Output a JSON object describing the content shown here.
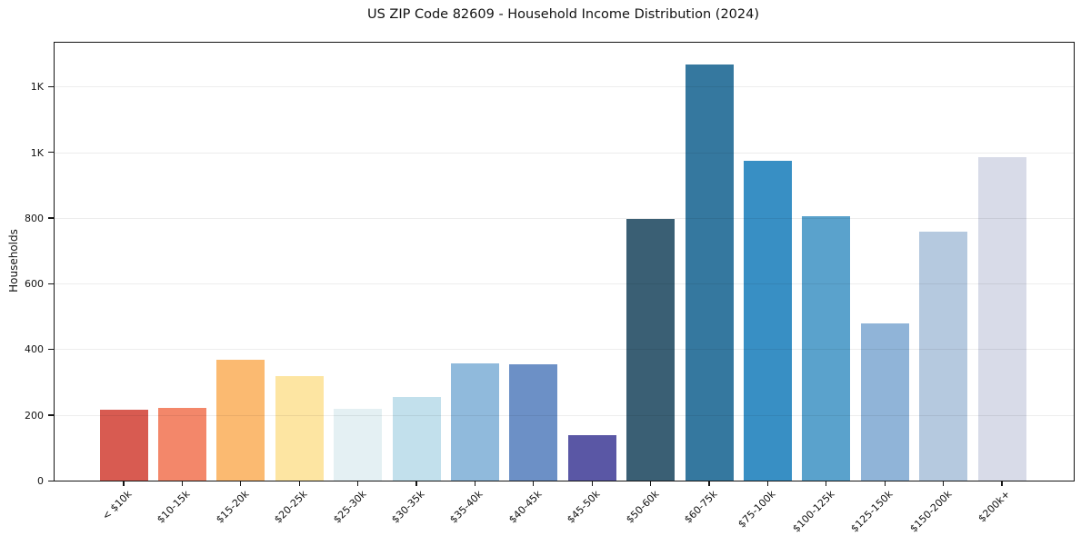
{
  "chart_data": {
    "type": "bar",
    "title": "US ZIP Code 82609 - Household Income Distribution (2024)",
    "xlabel": "",
    "ylabel": "Households",
    "categories": [
      "< $10k",
      "$10-15k",
      "$15-20k",
      "$20-25k",
      "$25-30k",
      "$30-35k",
      "$35-40k",
      "$40-45k",
      "$45-50k",
      "$50-60k",
      "$60-75k",
      "$75-100k",
      "$100-125k",
      "$125-150k",
      "$150-200k",
      "$200k+"
    ],
    "values": [
      215,
      222,
      367,
      318,
      219,
      254,
      356,
      355,
      139,
      796,
      1268,
      973,
      805,
      480,
      757,
      985
    ],
    "bar_colors": [
      "#d85b51",
      "#f3876a",
      "#fbba71",
      "#fde5a2",
      "#e4f0f3",
      "#c2e0ec",
      "#90badc",
      "#6c90c6",
      "#5a57a5",
      "#3a5f74",
      "#35789f",
      "#388fc4",
      "#5aa2cc",
      "#90b4d8",
      "#b5c9df",
      "#d8dbe8"
    ],
    "ylim": [
      0,
      1334
    ],
    "yticks": [
      0,
      200,
      400,
      600,
      800,
      1000,
      1200
    ],
    "ytick_labels": [
      "0",
      "200",
      "400",
      "600",
      "800",
      "1K",
      "1K"
    ],
    "xtick_rotation_deg": 45,
    "grid": "horizontal-only",
    "gridline_color": "#ececec",
    "spine_color": "#141414",
    "background_color": "#ffffff",
    "legend": "none"
  }
}
